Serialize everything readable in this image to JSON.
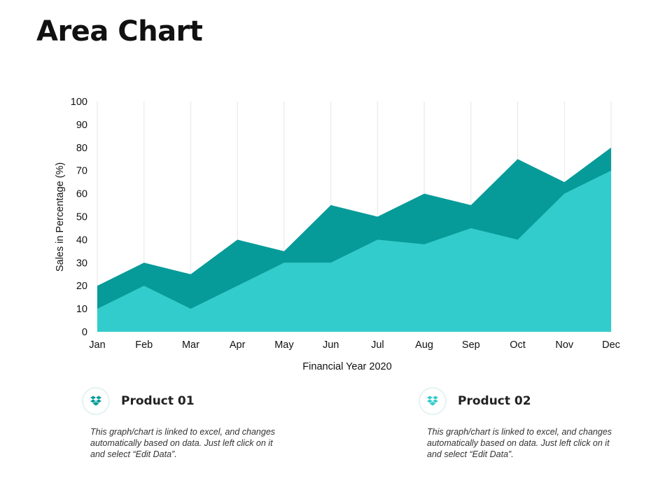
{
  "page": {
    "title": "Area Chart"
  },
  "chart_data": {
    "type": "area",
    "stacked": false,
    "categories": [
      "Jan",
      "Feb",
      "Mar",
      "Apr",
      "May",
      "Jun",
      "Jul",
      "Aug",
      "Sep",
      "Oct",
      "Nov",
      "Dec"
    ],
    "series": [
      {
        "name": "Product 01",
        "color": "#069b99",
        "values": [
          20,
          30,
          25,
          40,
          35,
          55,
          50,
          60,
          55,
          75,
          65,
          80
        ]
      },
      {
        "name": "Product 02",
        "color": "#33cccc",
        "values": [
          10,
          20,
          10,
          20,
          30,
          30,
          40,
          38,
          45,
          40,
          60,
          70
        ]
      }
    ],
    "xlabel": "Financial Year 2020",
    "ylabel": "Sales in Percentage  (%)",
    "ylim": [
      0,
      100
    ],
    "yticks": [
      0,
      10,
      20,
      30,
      40,
      50,
      60,
      70,
      80,
      90,
      100
    ],
    "grid": {
      "vertical": true,
      "horizontal": false
    },
    "legend_placement": "bottom"
  },
  "legend": [
    {
      "title": "Product 01",
      "icon": "box-icon",
      "icon_color": "#069b99",
      "description": "This graph/chart is linked to excel, and changes automatically based on data. Just left click on it and select “Edit Data”."
    },
    {
      "title": "Product 02",
      "icon": "box-icon",
      "icon_color": "#33cccc",
      "description": "This graph/chart is linked to excel, and changes automatically based on data. Just left click on it and select “Edit Data”."
    }
  ]
}
